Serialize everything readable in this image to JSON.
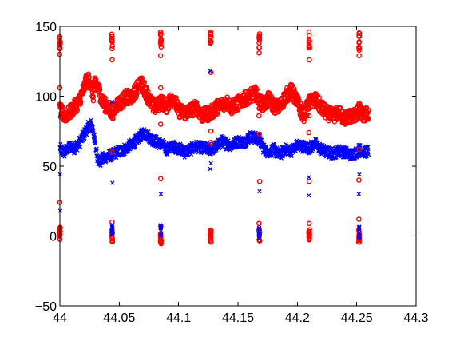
{
  "chart_data": {
    "type": "scatter",
    "title": "",
    "xlabel": "",
    "ylabel": "",
    "xlim": [
      44,
      44.3
    ],
    "ylim": [
      -50,
      150
    ],
    "grid": false,
    "legend": "none",
    "x_ticks": [
      "44",
      "44.05",
      "44.1",
      "44.15",
      "44.2",
      "44.25",
      "44.3"
    ],
    "y_ticks": [
      "-50",
      "0",
      "50",
      "100",
      "150"
    ],
    "burst_times": [
      44.0,
      44.044,
      44.085,
      44.127,
      44.168,
      44.21,
      44.252
    ],
    "series": [
      {
        "color": "#0000ff",
        "marker": "x",
        "points": [
          [
            44.0,
            62
          ],
          [
            44.004,
            60
          ],
          [
            44.008,
            64
          ],
          [
            44.012,
            63
          ],
          [
            44.016,
            66
          ],
          [
            44.02,
            72
          ],
          [
            44.024,
            78
          ],
          [
            44.026,
            80
          ],
          [
            44.028,
            76
          ],
          [
            44.03,
            64
          ],
          [
            44.032,
            55
          ],
          [
            44.034,
            53
          ],
          [
            44.036,
            56
          ],
          [
            44.04,
            57
          ],
          [
            44.044,
            58
          ],
          [
            44.048,
            60
          ],
          [
            44.052,
            61
          ],
          [
            44.056,
            63
          ],
          [
            44.06,
            65
          ],
          [
            44.064,
            68
          ],
          [
            44.068,
            72
          ],
          [
            44.072,
            74
          ],
          [
            44.076,
            70
          ],
          [
            44.08,
            68
          ],
          [
            44.085,
            66
          ],
          [
            44.09,
            62
          ],
          [
            44.095,
            64
          ],
          [
            44.1,
            63
          ],
          [
            44.105,
            60
          ],
          [
            44.11,
            62
          ],
          [
            44.115,
            64
          ],
          [
            44.12,
            63
          ],
          [
            44.127,
            62
          ],
          [
            44.132,
            64
          ],
          [
            44.136,
            68
          ],
          [
            44.14,
            66
          ],
          [
            44.145,
            65
          ],
          [
            44.15,
            68
          ],
          [
            44.155,
            67
          ],
          [
            44.16,
            71
          ],
          [
            44.165,
            70
          ],
          [
            44.168,
            69
          ],
          [
            44.172,
            62
          ],
          [
            44.176,
            60
          ],
          [
            44.18,
            62
          ],
          [
            44.185,
            58
          ],
          [
            44.19,
            62
          ],
          [
            44.195,
            61
          ],
          [
            44.2,
            65
          ],
          [
            44.205,
            64
          ],
          [
            44.21,
            63
          ],
          [
            44.215,
            66
          ],
          [
            44.22,
            62
          ],
          [
            44.225,
            60
          ],
          [
            44.23,
            59
          ],
          [
            44.235,
            61
          ],
          [
            44.24,
            60
          ],
          [
            44.245,
            58
          ],
          [
            44.25,
            60
          ],
          [
            44.252,
            62
          ],
          [
            44.256,
            60
          ],
          [
            44.26,
            61
          ]
        ]
      },
      {
        "color": "#ff0000",
        "marker": "o",
        "points": [
          [
            44.0,
            90
          ],
          [
            44.004,
            86
          ],
          [
            44.008,
            88
          ],
          [
            44.012,
            92
          ],
          [
            44.016,
            96
          ],
          [
            44.02,
            105
          ],
          [
            44.023,
            112
          ],
          [
            44.026,
            110
          ],
          [
            44.028,
            100
          ],
          [
            44.03,
            110
          ],
          [
            44.033,
            104
          ],
          [
            44.036,
            96
          ],
          [
            44.04,
            92
          ],
          [
            44.044,
            88
          ],
          [
            44.048,
            94
          ],
          [
            44.052,
            96
          ],
          [
            44.056,
            100
          ],
          [
            44.06,
            98
          ],
          [
            44.064,
            104
          ],
          [
            44.068,
            110
          ],
          [
            44.072,
            104
          ],
          [
            44.076,
            96
          ],
          [
            44.08,
            92
          ],
          [
            44.085,
            96
          ],
          [
            44.09,
            93
          ],
          [
            44.095,
            100
          ],
          [
            44.1,
            90
          ],
          [
            44.105,
            88
          ],
          [
            44.11,
            90
          ],
          [
            44.115,
            92
          ],
          [
            44.12,
            86
          ],
          [
            44.127,
            88
          ],
          [
            44.132,
            92
          ],
          [
            44.136,
            94
          ],
          [
            44.14,
            96
          ],
          [
            44.145,
            92
          ],
          [
            44.15,
            95
          ],
          [
            44.155,
            98
          ],
          [
            44.16,
            100
          ],
          [
            44.165,
            102
          ],
          [
            44.168,
            96
          ],
          [
            44.172,
            94
          ],
          [
            44.176,
            98
          ],
          [
            44.18,
            93
          ],
          [
            44.185,
            92
          ],
          [
            44.19,
            100
          ],
          [
            44.195,
            104
          ],
          [
            44.2,
            96
          ],
          [
            44.205,
            86
          ],
          [
            44.21,
            95
          ],
          [
            44.215,
            98
          ],
          [
            44.22,
            92
          ],
          [
            44.225,
            88
          ],
          [
            44.23,
            86
          ],
          [
            44.235,
            88
          ],
          [
            44.24,
            84
          ],
          [
            44.245,
            86
          ],
          [
            44.25,
            87
          ],
          [
            44.252,
            90
          ],
          [
            44.256,
            86
          ],
          [
            44.26,
            88
          ]
        ]
      },
      {
        "color": "#ff0000",
        "marker": "o",
        "points": [
          [
            44.0,
            138
          ],
          [
            44.0,
            130
          ],
          [
            44.0,
            106
          ],
          [
            44.0,
            24
          ],
          [
            44.0,
            2
          ],
          [
            44.044,
            136
          ],
          [
            44.044,
            126
          ],
          [
            44.044,
            60
          ],
          [
            44.044,
            10
          ],
          [
            44.044,
            0
          ],
          [
            44.085,
            140
          ],
          [
            44.085,
            129
          ],
          [
            44.085,
            106
          ],
          [
            44.085,
            80
          ],
          [
            44.085,
            41
          ],
          [
            44.085,
            7
          ],
          [
            44.085,
            -2
          ],
          [
            44.127,
            138
          ],
          [
            44.127,
            117
          ],
          [
            44.127,
            75
          ],
          [
            44.127,
            67
          ],
          [
            44.127,
            0
          ],
          [
            44.168,
            142
          ],
          [
            44.168,
            131
          ],
          [
            44.168,
            86
          ],
          [
            44.168,
            73
          ],
          [
            44.168,
            39
          ],
          [
            44.168,
            9
          ],
          [
            44.168,
            0
          ],
          [
            44.21,
            146
          ],
          [
            44.21,
            126
          ],
          [
            44.21,
            100
          ],
          [
            44.21,
            86
          ],
          [
            44.21,
            74
          ],
          [
            44.21,
            39
          ],
          [
            44.21,
            9
          ],
          [
            44.21,
            0
          ],
          [
            44.252,
            145
          ],
          [
            44.252,
            133
          ],
          [
            44.252,
            129
          ],
          [
            44.252,
            95
          ],
          [
            44.252,
            85
          ],
          [
            44.252,
            62
          ],
          [
            44.252,
            40
          ],
          [
            44.252,
            12
          ],
          [
            44.252,
            0
          ]
        ]
      },
      {
        "color": "#0000ff",
        "marker": "x",
        "points": [
          [
            44.0,
            18
          ],
          [
            44.0,
            44
          ],
          [
            44.044,
            96
          ],
          [
            44.044,
            38
          ],
          [
            44.044,
            4
          ],
          [
            44.085,
            30
          ],
          [
            44.085,
            4
          ],
          [
            44.127,
            118
          ],
          [
            44.127,
            52
          ],
          [
            44.127,
            48
          ],
          [
            44.168,
            32
          ],
          [
            44.168,
            2
          ],
          [
            44.21,
            42
          ],
          [
            44.21,
            29
          ],
          [
            44.252,
            44
          ],
          [
            44.252,
            30
          ],
          [
            44.252,
            2
          ]
        ]
      }
    ]
  }
}
